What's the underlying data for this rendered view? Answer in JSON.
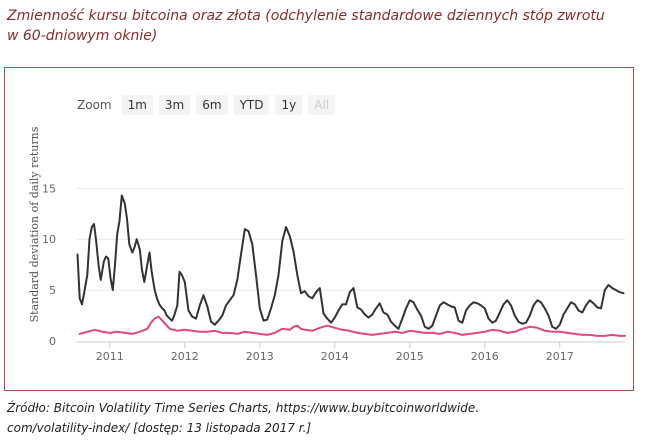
{
  "figure_title": "Zmienność kursu bitcoina oraz złota (odchylenie standardowe dziennych stóp zwrotu w 60-dniowym oknie)",
  "source_line1": "Źródło: Bitcoin Volatility Time Series Charts, https://www.buybitcoinworldwide.",
  "source_line2": "com/volatility-index/ [dostęp: 13 listopada 2017 r.]",
  "zoom": {
    "label": "Zoom",
    "buttons": [
      "1m",
      "3m",
      "6m",
      "YTD",
      "1y",
      "All"
    ],
    "disabled": "All"
  },
  "colors": {
    "bitcoin": "#333333",
    "gold": "#e0497a",
    "frame": "#b04a4a",
    "title": "#8b2a2a"
  },
  "chart_data": {
    "type": "line",
    "ylabel": "Standard deviation of daily returns",
    "ylim": [
      0,
      17
    ],
    "yticks": [
      0,
      5,
      10,
      15
    ],
    "xlim": [
      2010.55,
      2017.87
    ],
    "xticks": [
      2011,
      2012,
      2013,
      2014,
      2015,
      2016,
      2017
    ],
    "grid": true,
    "series": [
      {
        "key": "bitcoin",
        "x": [
          2010.57,
          2010.6,
          2010.63,
          2010.66,
          2010.7,
          2010.73,
          2010.76,
          2010.79,
          2010.82,
          2010.85,
          2010.88,
          2010.92,
          2010.95,
          2010.98,
          2011.01,
          2011.04,
          2011.07,
          2011.1,
          2011.13,
          2011.16,
          2011.2,
          2011.23,
          2011.26,
          2011.3,
          2011.33,
          2011.36,
          2011.4,
          2011.43,
          2011.46,
          2011.5,
          2011.53,
          2011.56,
          2011.6,
          2011.63,
          2011.66,
          2011.7,
          2011.73,
          2011.76,
          2011.8,
          2011.83,
          2011.86,
          2011.9,
          2011.93,
          2011.96,
          2012.0,
          2012.05,
          2012.1,
          2012.15,
          2012.2,
          2012.25,
          2012.3,
          2012.35,
          2012.4,
          2012.45,
          2012.5,
          2012.55,
          2012.6,
          2012.65,
          2012.7,
          2012.75,
          2012.8,
          2012.85,
          2012.9,
          2012.95,
          2013.0,
          2013.05,
          2013.1,
          2013.15,
          2013.2,
          2013.25,
          2013.3,
          2013.35,
          2013.4,
          2013.45,
          2013.5,
          2013.55,
          2013.6,
          2013.65,
          2013.7,
          2013.75,
          2013.8,
          2013.85,
          2013.9,
          2013.95,
          2014.0,
          2014.05,
          2014.1,
          2014.15,
          2014.2,
          2014.25,
          2014.3,
          2014.35,
          2014.4,
          2014.45,
          2014.5,
          2014.55,
          2014.6,
          2014.65,
          2014.7,
          2014.75,
          2014.8,
          2014.85,
          2014.9,
          2014.95,
          2015.0,
          2015.05,
          2015.1,
          2015.15,
          2015.2,
          2015.25,
          2015.3,
          2015.35,
          2015.4,
          2015.45,
          2015.5,
          2015.55,
          2015.6,
          2015.65,
          2015.7,
          2015.75,
          2015.8,
          2015.85,
          2015.9,
          2015.95,
          2016.0,
          2016.05,
          2016.1,
          2016.15,
          2016.2,
          2016.25,
          2016.3,
          2016.35,
          2016.4,
          2016.45,
          2016.5,
          2016.55,
          2016.6,
          2016.65,
          2016.7,
          2016.75,
          2016.8,
          2016.85,
          2016.9,
          2016.95,
          2017.0,
          2017.05,
          2017.1,
          2017.15,
          2017.2,
          2017.25,
          2017.3,
          2017.35,
          2017.4,
          2017.45,
          2017.5,
          2017.55,
          2017.6,
          2017.65,
          2017.7,
          2017.75,
          2017.8,
          2017.85
        ],
        "y": [
          8.5,
          4.2,
          3.6,
          4.8,
          6.5,
          10.0,
          11.2,
          11.5,
          9.8,
          7.5,
          6.0,
          7.8,
          8.3,
          8.1,
          6.2,
          5.0,
          7.5,
          10.5,
          11.8,
          14.3,
          13.5,
          12.0,
          9.5,
          8.7,
          9.2,
          10.0,
          9.0,
          7.0,
          5.8,
          7.5,
          8.7,
          6.8,
          5.0,
          4.2,
          3.6,
          3.2,
          3.0,
          2.5,
          2.2,
          2.0,
          2.5,
          3.5,
          6.8,
          6.5,
          5.8,
          3.0,
          2.4,
          2.2,
          3.5,
          4.5,
          3.4,
          1.9,
          1.6,
          2.0,
          2.5,
          3.5,
          4.0,
          4.5,
          6.0,
          8.5,
          11.0,
          10.8,
          9.5,
          6.5,
          3.2,
          2.0,
          2.1,
          3.2,
          4.5,
          6.5,
          9.8,
          11.2,
          10.3,
          8.8,
          6.5,
          4.7,
          4.9,
          4.4,
          4.2,
          4.8,
          5.2,
          2.7,
          2.2,
          1.8,
          2.3,
          3.0,
          3.6,
          3.6,
          4.8,
          5.2,
          3.3,
          3.1,
          2.6,
          2.3,
          2.6,
          3.2,
          3.7,
          2.8,
          2.6,
          1.9,
          1.5,
          1.2,
          2.2,
          3.2,
          4.0,
          3.8,
          3.1,
          2.5,
          1.4,
          1.2,
          1.5,
          2.5,
          3.5,
          3.8,
          3.6,
          3.4,
          3.3,
          2.0,
          1.8,
          3.0,
          3.5,
          3.8,
          3.7,
          3.5,
          3.2,
          2.2,
          1.8,
          2.0,
          2.8,
          3.6,
          4.0,
          3.5,
          2.5,
          1.9,
          1.7,
          1.8,
          2.5,
          3.5,
          4.0,
          3.8,
          3.2,
          2.5,
          1.4,
          1.2,
          1.6,
          2.6,
          3.2,
          3.8,
          3.6,
          3.0,
          2.8,
          3.5,
          4.0,
          3.7,
          3.3,
          3.2,
          5.0,
          5.5,
          5.2,
          5.0,
          4.8,
          4.7
        ]
      },
      {
        "key": "gold",
        "x": [
          2010.6,
          2010.7,
          2010.8,
          2010.9,
          2011.0,
          2011.1,
          2011.2,
          2011.3,
          2011.4,
          2011.5,
          2011.55,
          2011.6,
          2011.65,
          2011.7,
          2011.75,
          2011.8,
          2011.9,
          2012.0,
          2012.1,
          2012.2,
          2012.3,
          2012.4,
          2012.5,
          2012.6,
          2012.7,
          2012.8,
          2012.9,
          2013.0,
          2013.1,
          2013.2,
          2013.3,
          2013.4,
          2013.45,
          2013.5,
          2013.55,
          2013.6,
          2013.7,
          2013.8,
          2013.9,
          2014.0,
          2014.1,
          2014.2,
          2014.3,
          2014.4,
          2014.5,
          2014.6,
          2014.7,
          2014.8,
          2014.9,
          2015.0,
          2015.1,
          2015.2,
          2015.3,
          2015.4,
          2015.5,
          2015.6,
          2015.7,
          2015.8,
          2015.9,
          2016.0,
          2016.1,
          2016.2,
          2016.3,
          2016.4,
          2016.5,
          2016.6,
          2016.7,
          2016.8,
          2016.9,
          2017.0,
          2017.1,
          2017.2,
          2017.3,
          2017.4,
          2017.5,
          2017.6,
          2017.7,
          2017.8,
          2017.87
        ],
        "y": [
          0.7,
          0.9,
          1.1,
          0.9,
          0.8,
          0.9,
          0.8,
          0.7,
          0.9,
          1.2,
          1.8,
          2.2,
          2.4,
          2.0,
          1.6,
          1.2,
          1.0,
          1.1,
          1.0,
          0.9,
          0.9,
          1.0,
          0.8,
          0.8,
          0.7,
          0.9,
          0.8,
          0.7,
          0.6,
          0.8,
          1.2,
          1.1,
          1.4,
          1.5,
          1.2,
          1.1,
          1.0,
          1.3,
          1.5,
          1.3,
          1.1,
          1.0,
          0.8,
          0.7,
          0.6,
          0.7,
          0.8,
          0.9,
          0.8,
          1.0,
          0.9,
          0.8,
          0.8,
          0.7,
          0.9,
          0.8,
          0.6,
          0.7,
          0.8,
          0.9,
          1.1,
          1.0,
          0.8,
          0.9,
          1.2,
          1.4,
          1.3,
          1.0,
          0.9,
          0.9,
          0.8,
          0.7,
          0.6,
          0.6,
          0.5,
          0.5,
          0.6,
          0.5,
          0.5
        ]
      }
    ]
  }
}
